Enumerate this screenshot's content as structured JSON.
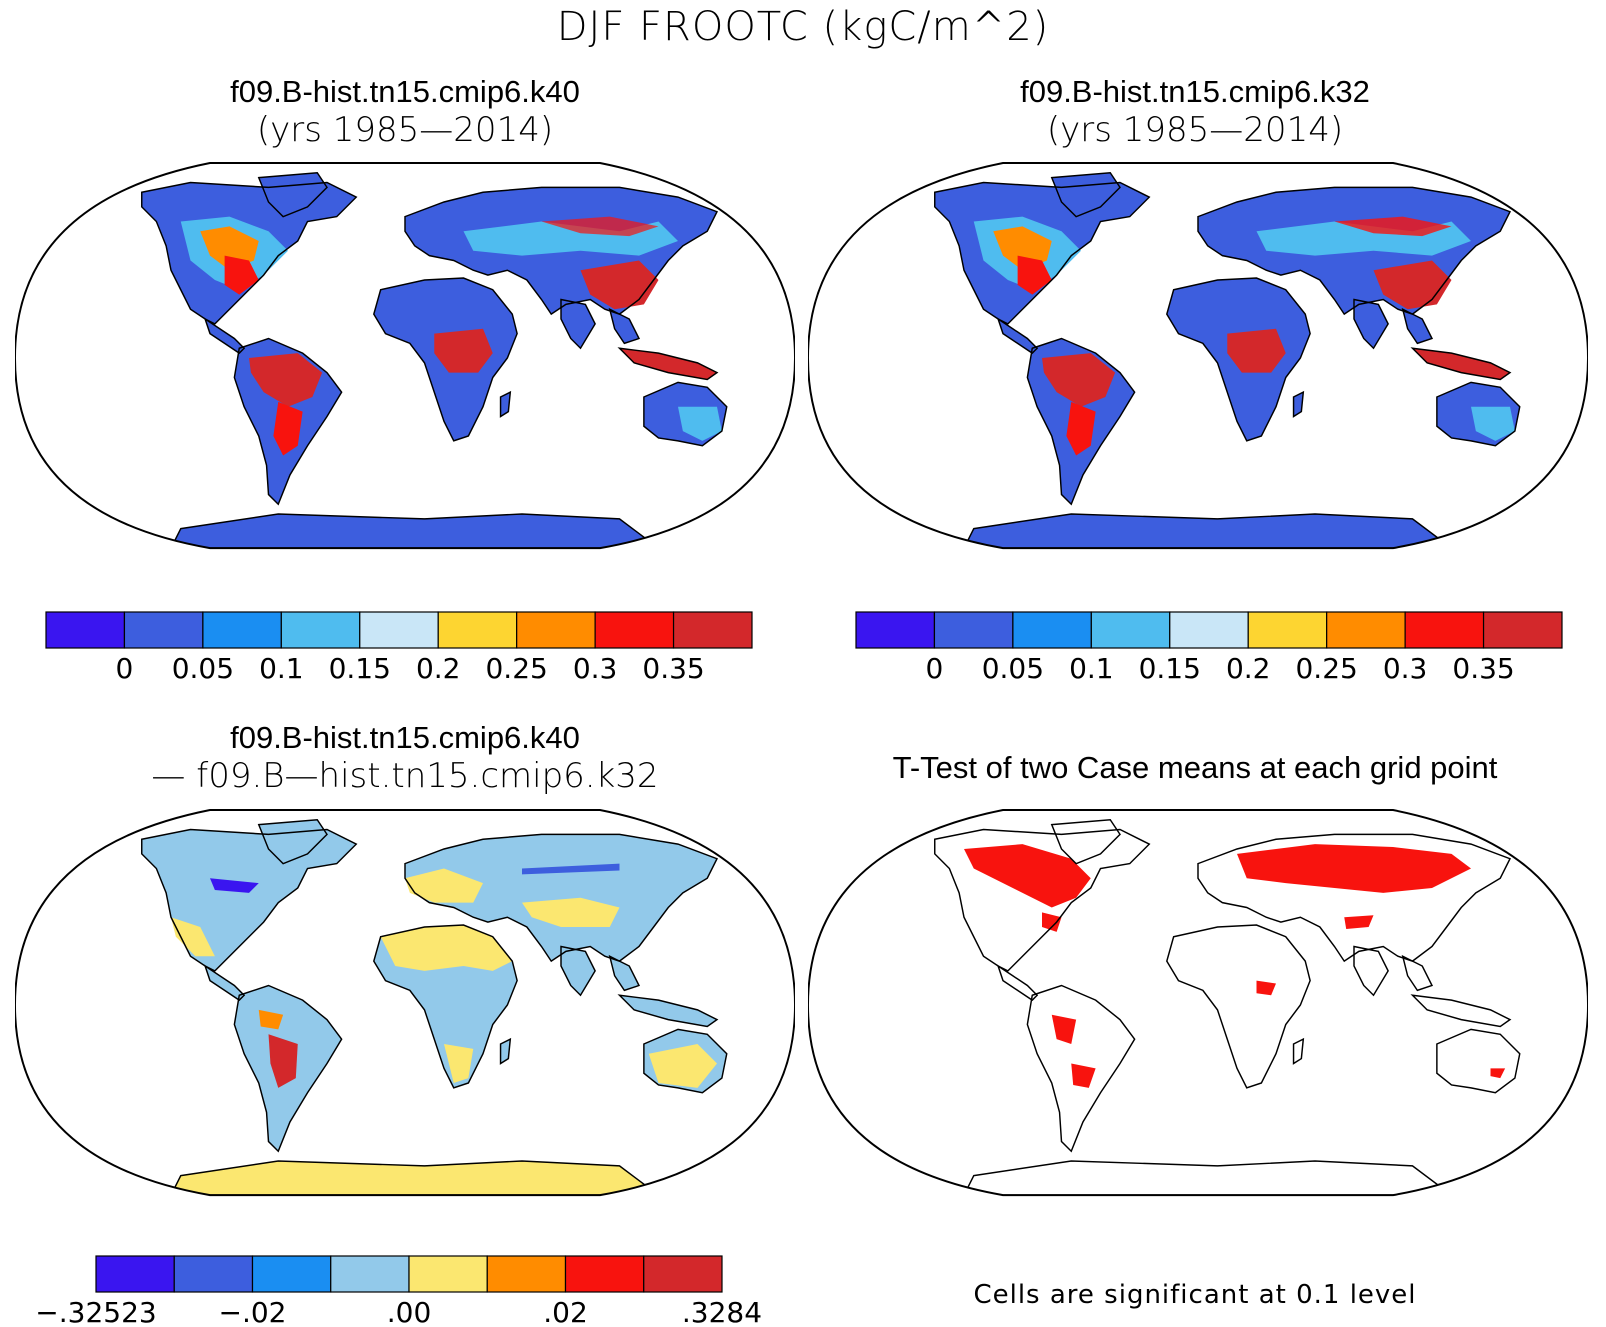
{
  "title": "DJF FROOTC (kgC/m^2)",
  "panels": {
    "k40": {
      "case": "f09.B-hist.tn15.cmip6.k40",
      "years": "(yrs 1985—2014)"
    },
    "k32": {
      "case": "f09.B-hist.tn15.cmip6.k32",
      "years": "(yrs 1985—2014)"
    },
    "diff": {
      "line1": "f09.B-hist.tn15.cmip6.k40",
      "line2": "— f09.B—hist.tn15.cmip6.k32"
    },
    "ttest": {
      "title": "T-Test of two Case means at each grid point",
      "footnote": "Cells are significant at 0.1 level"
    }
  },
  "colorbar_main": {
    "colors": [
      "#3a15f0",
      "#3d5ede",
      "#1a8ef2",
      "#4fbcef",
      "#c9e6f7",
      "#fdd531",
      "#ff8c00",
      "#f8130e",
      "#d3282b"
    ],
    "labels": [
      "0",
      "0.05",
      "0.1",
      "0.15",
      "0.2",
      "0.25",
      "0.3",
      "0.35"
    ]
  },
  "colorbar_diff": {
    "colors": [
      "#3a15f0",
      "#3d5ede",
      "#1a8ef2",
      "#92c9ea",
      "#fbe770",
      "#ff8c00",
      "#f8130e",
      "#d3282b"
    ],
    "labels": [
      "−.32523",
      "−.02",
      ".00",
      ".02",
      ".3284"
    ]
  },
  "map_colors": {
    "ocean": "#ffffff",
    "land_low": "#3d5ede",
    "land_mid": "#4fbcef",
    "land_high": "#d3282b",
    "land_hot": "#f8130e",
    "land_warm": "#ff8c00",
    "diff_base": "#92c9ea",
    "diff_pos": "#fbe770",
    "significant": "#f8130e"
  }
}
